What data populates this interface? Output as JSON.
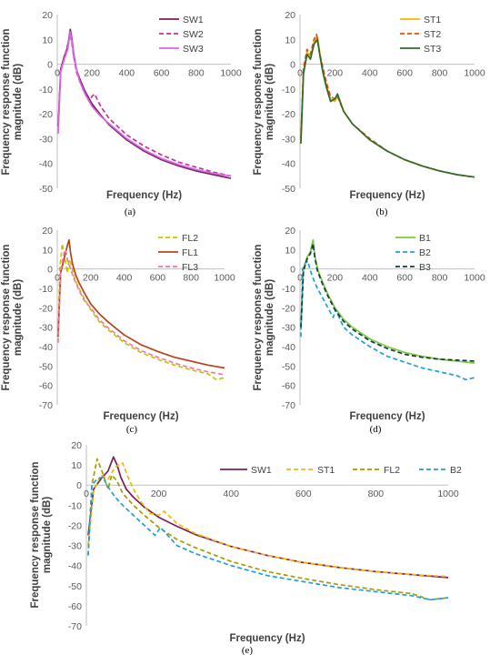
{
  "chart_data": [
    {
      "type": "line",
      "caption": "(a)",
      "xlabel": "Frequency (Hz)",
      "ylabel": "Frequency response function magnitude (dB)",
      "xlim": [
        0,
        1000
      ],
      "ylim": [
        -50,
        20
      ],
      "xticks": [
        0,
        200,
        400,
        600,
        800,
        1000
      ],
      "yticks": [
        -50,
        -40,
        -30,
        -20,
        -10,
        0,
        10,
        20
      ],
      "grid": false,
      "legend": "top-right",
      "series": [
        {
          "name": "SW1",
          "color": "#7a1f5c",
          "dash": "solid",
          "x": [
            5,
            20,
            40,
            60,
            75,
            85,
            95,
            110,
            130,
            160,
            200,
            250,
            300,
            400,
            500,
            600,
            700,
            800,
            900,
            1000
          ],
          "y": [
            -25,
            -2,
            3,
            7,
            14,
            10,
            4,
            -2,
            -6,
            -11,
            -16,
            -20.5,
            -24.5,
            -30.5,
            -35,
            -38.5,
            -41,
            -43,
            -44.5,
            -46
          ]
        },
        {
          "name": "SW2",
          "color": "#c8309a",
          "dash": "dashed",
          "x": [
            5,
            20,
            40,
            60,
            75,
            85,
            95,
            110,
            130,
            160,
            185,
            200,
            215,
            250,
            300,
            400,
            500,
            600,
            700,
            800,
            900,
            1000
          ],
          "y": [
            -25,
            -2,
            2,
            8,
            12,
            8,
            3,
            -3,
            -7,
            -12,
            -15,
            -13,
            -12,
            -17,
            -22,
            -28.5,
            -33,
            -36.5,
            -39.5,
            -41.5,
            -43.5,
            -45
          ]
        },
        {
          "name": "SW3",
          "color": "#d966e6",
          "dash": "solid",
          "x": [
            5,
            20,
            40,
            60,
            75,
            85,
            95,
            110,
            130,
            160,
            200,
            250,
            300,
            400,
            500,
            600,
            700,
            800,
            900,
            1000
          ],
          "y": [
            -28,
            -3,
            2,
            6,
            13,
            9,
            3,
            -2,
            -7,
            -12,
            -17,
            -21,
            -24,
            -30,
            -34.5,
            -38,
            -40.5,
            -42.5,
            -44,
            -45
          ]
        }
      ]
    },
    {
      "type": "line",
      "caption": "(b)",
      "xlabel": "Frequency (Hz)",
      "ylabel": "Frequency response function magnitude (dB)",
      "xlim": [
        0,
        1000
      ],
      "ylim": [
        -50,
        20
      ],
      "xticks": [
        0,
        200,
        400,
        600,
        800,
        1000
      ],
      "yticks": [
        -50,
        -40,
        -30,
        -20,
        -10,
        0,
        10,
        20
      ],
      "grid": false,
      "legend": "top-right",
      "series": [
        {
          "name": "ST1",
          "color": "#f5b700",
          "dash": "solid",
          "x": [
            5,
            20,
            40,
            60,
            80,
            100,
            115,
            130,
            150,
            175,
            200,
            215,
            250,
            300,
            400,
            500,
            600,
            700,
            800,
            900,
            1000
          ],
          "y": [
            -30,
            -3,
            5,
            3,
            9,
            11,
            4,
            -2,
            -8,
            -14,
            -15,
            -13,
            -19,
            -24,
            -30.5,
            -35,
            -38.5,
            -41,
            -43,
            -44.5,
            -45.5
          ]
        },
        {
          "name": "ST2",
          "color": "#d6501a",
          "dash": "dashed",
          "x": [
            5,
            20,
            40,
            60,
            80,
            95,
            110,
            130,
            150,
            175,
            200,
            215,
            250,
            300,
            400,
            500,
            600,
            700,
            800,
            900,
            1000
          ],
          "y": [
            -30,
            -2,
            6,
            4,
            10,
            12,
            5,
            -1,
            -7,
            -13,
            -14,
            -13,
            -19,
            -24,
            -30,
            -35,
            -38.5,
            -41,
            -43,
            -44.5,
            -45.5
          ]
        },
        {
          "name": "ST3",
          "color": "#2e6b2e",
          "dash": "solid",
          "x": [
            5,
            20,
            40,
            60,
            80,
            100,
            115,
            130,
            150,
            175,
            200,
            215,
            250,
            300,
            400,
            500,
            600,
            700,
            800,
            900,
            1000
          ],
          "y": [
            -32,
            -4,
            4,
            2,
            8,
            10,
            3,
            -3,
            -9,
            -15,
            -14,
            -12,
            -19,
            -24,
            -30.5,
            -35,
            -38.5,
            -41,
            -43,
            -44.5,
            -45.5
          ]
        }
      ]
    },
    {
      "type": "line",
      "caption": "(c)",
      "xlabel": "Frequency (Hz)",
      "ylabel": "Frequency response function magnitude (dB)",
      "xlim": [
        0,
        1000
      ],
      "ylim": [
        -70,
        20
      ],
      "xticks": [
        0,
        200,
        400,
        600,
        800,
        1000
      ],
      "yticks": [
        -70,
        -60,
        -50,
        -40,
        -30,
        -20,
        -10,
        0,
        10,
        20
      ],
      "grid": false,
      "legend": "top-right",
      "series": [
        {
          "name": "FL2",
          "color": "#c9c400",
          "dash": "dashed",
          "x": [
            5,
            15,
            30,
            45,
            60,
            70,
            85,
            100,
            130,
            160,
            200,
            250,
            300,
            400,
            500,
            600,
            700,
            800,
            900,
            950,
            1000
          ],
          "y": [
            -35,
            0,
            13,
            6,
            -2,
            5,
            2,
            -4,
            -10,
            -15,
            -21,
            -27,
            -31,
            -38,
            -43,
            -46.5,
            -49.5,
            -52,
            -54,
            -57,
            -56
          ]
        },
        {
          "name": "FL1",
          "color": "#b5451b",
          "dash": "solid",
          "x": [
            5,
            20,
            40,
            60,
            70,
            80,
            90,
            110,
            130,
            160,
            200,
            250,
            300,
            400,
            500,
            600,
            700,
            800,
            900,
            1000
          ],
          "y": [
            -35,
            -2,
            5,
            12,
            15,
            8,
            3,
            -3,
            -7,
            -12,
            -18,
            -23,
            -27,
            -34,
            -39,
            -42.5,
            -45.5,
            -47.5,
            -49.5,
            -51
          ]
        },
        {
          "name": "FL3",
          "color": "#f07aa0",
          "dash": "dashed",
          "x": [
            5,
            20,
            40,
            50,
            60,
            80,
            100,
            130,
            160,
            200,
            250,
            300,
            400,
            500,
            600,
            700,
            800,
            900,
            1000
          ],
          "y": [
            -38,
            -1,
            8,
            10,
            5,
            0,
            -5,
            -11,
            -16,
            -20,
            -26,
            -30,
            -37,
            -42,
            -45.5,
            -48.5,
            -51,
            -53,
            -54.5
          ]
        }
      ]
    },
    {
      "type": "line",
      "caption": "(d)",
      "xlabel": "Frequency (Hz)",
      "ylabel": "Frequency response function magnitude (dB)",
      "xlim": [
        0,
        1000
      ],
      "ylim": [
        -70,
        20
      ],
      "xticks": [
        0,
        200,
        400,
        600,
        800,
        1000
      ],
      "yticks": [
        -70,
        -60,
        -50,
        -40,
        -30,
        -20,
        -10,
        0,
        10,
        20
      ],
      "grid": false,
      "legend": "top-right",
      "series": [
        {
          "name": "B1",
          "color": "#7ccb3a",
          "dash": "solid",
          "x": [
            5,
            20,
            40,
            60,
            75,
            85,
            100,
            130,
            160,
            200,
            250,
            300,
            400,
            500,
            600,
            700,
            800,
            900,
            1000
          ],
          "y": [
            -30,
            0,
            6,
            9,
            15,
            7,
            0,
            -7,
            -13,
            -20,
            -26,
            -30,
            -36,
            -40,
            -43,
            -45,
            -46.5,
            -47.5,
            -48.5
          ]
        },
        {
          "name": "B2",
          "color": "#1fa0d8",
          "dash": "dashed",
          "x": [
            5,
            15,
            30,
            45,
            60,
            80,
            100,
            130,
            160,
            190,
            205,
            220,
            250,
            300,
            400,
            500,
            600,
            700,
            800,
            900,
            950,
            1000
          ],
          "y": [
            -35,
            0,
            3,
            4,
            -1,
            -6,
            -10,
            -15,
            -20,
            -25,
            -21,
            -24,
            -30,
            -34,
            -40,
            -45,
            -48,
            -51,
            -53,
            -55,
            -57,
            -56
          ]
        },
        {
          "name": "B3",
          "color": "#123a4a",
          "dash": "dashed",
          "x": [
            5,
            20,
            40,
            60,
            75,
            85,
            100,
            130,
            160,
            200,
            250,
            300,
            400,
            500,
            600,
            700,
            800,
            900,
            1000
          ],
          "y": [
            -30,
            -1,
            5,
            8,
            13,
            6,
            -1,
            -8,
            -14,
            -21,
            -27,
            -31,
            -37,
            -41,
            -44,
            -45.5,
            -46.5,
            -47,
            -47.5
          ]
        }
      ]
    },
    {
      "type": "line",
      "caption": "(e)",
      "xlabel": "Frequency (Hz)",
      "ylabel": "Frequency response function magnitude (dB)",
      "xlim": [
        0,
        1000
      ],
      "ylim": [
        -70,
        20
      ],
      "xticks": [
        0,
        200,
        400,
        600,
        800,
        1000
      ],
      "yticks": [
        -70,
        -60,
        -50,
        -40,
        -30,
        -20,
        -10,
        0,
        10,
        20
      ],
      "grid": false,
      "legend": "top-right",
      "series": [
        {
          "name": "SW1",
          "color": "#7a1f5c",
          "dash": "solid",
          "x": [
            5,
            20,
            40,
            60,
            75,
            85,
            95,
            110,
            130,
            160,
            200,
            250,
            300,
            400,
            500,
            600,
            700,
            800,
            900,
            1000
          ],
          "y": [
            -25,
            -2,
            3,
            7,
            14,
            10,
            4,
            -2,
            -6,
            -11,
            -16,
            -20.5,
            -24.5,
            -30.5,
            -35,
            -38.5,
            -41,
            -43,
            -44.5,
            -46
          ]
        },
        {
          "name": "ST1",
          "color": "#f5b700",
          "dash": "dashed",
          "x": [
            5,
            20,
            40,
            60,
            80,
            100,
            115,
            130,
            150,
            175,
            200,
            215,
            250,
            300,
            400,
            500,
            600,
            700,
            800,
            900,
            1000
          ],
          "y": [
            -30,
            -3,
            5,
            3,
            9,
            11,
            4,
            -2,
            -8,
            -14,
            -15,
            -13,
            -19,
            -24,
            -30.5,
            -35,
            -38.5,
            -41,
            -43,
            -44.5,
            -45.5
          ]
        },
        {
          "name": "FL2",
          "color": "#a89a00",
          "dash": "dashed",
          "x": [
            5,
            15,
            30,
            45,
            60,
            70,
            85,
            100,
            130,
            160,
            200,
            250,
            300,
            400,
            500,
            600,
            700,
            800,
            900,
            950,
            1000
          ],
          "y": [
            -35,
            0,
            13,
            6,
            -2,
            5,
            2,
            -4,
            -10,
            -15,
            -21,
            -27,
            -31,
            -38,
            -43,
            -46.5,
            -49.5,
            -52,
            -54,
            -57,
            -56
          ]
        },
        {
          "name": "B2",
          "color": "#1fa0d8",
          "dash": "dashed",
          "x": [
            5,
            15,
            30,
            45,
            60,
            80,
            100,
            130,
            160,
            190,
            205,
            220,
            250,
            300,
            400,
            500,
            600,
            700,
            800,
            900,
            950,
            1000
          ],
          "y": [
            -35,
            0,
            3,
            4,
            -1,
            -6,
            -10,
            -15,
            -20,
            -25,
            -21,
            -24,
            -30,
            -34,
            -40,
            -45,
            -48,
            -51,
            -53,
            -55,
            -57,
            -56
          ]
        }
      ]
    }
  ]
}
